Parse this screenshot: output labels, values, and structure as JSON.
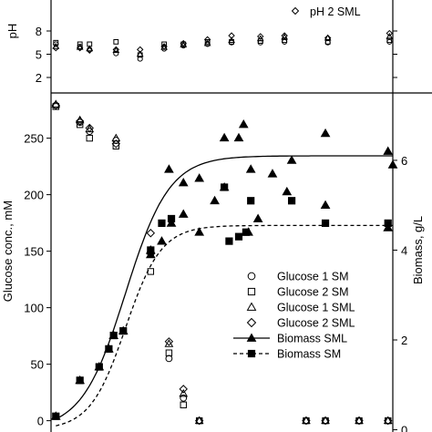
{
  "chart_data": {
    "type": "scatter",
    "x_range": [
      -1,
      70
    ],
    "top_panel": {
      "ylabel": "pH",
      "yticks": [
        2,
        5,
        8
      ],
      "ylim": [
        0,
        12
      ],
      "legend_text": "pH 2 SML"
    },
    "main_panel": {
      "ylabel_left": "Glucose conc., mM",
      "ylabel_right": "Biomass, g/L",
      "left_ticks": [
        0,
        50,
        100,
        150,
        200,
        250
      ],
      "left_ylim": [
        -10,
        290
      ],
      "right_ticks": [
        0,
        2,
        4,
        6
      ],
      "right_ylim": [
        -0.05,
        7.5
      ],
      "legend": [
        {
          "label": "Glucose 1 SM",
          "marker": "circle"
        },
        {
          "label": "Glucose 2 SM",
          "marker": "square"
        },
        {
          "label": "Glucose 1 SML",
          "marker": "triangle"
        },
        {
          "label": "Glucose 2 SML",
          "marker": "diamond"
        },
        {
          "label": "Biomass SML",
          "marker": "filled-triangle",
          "line": "solid"
        },
        {
          "label": "Biomass SM",
          "marker": "filled-square",
          "line": "dashed"
        }
      ]
    },
    "series": [
      {
        "name": "Glucose 1 SM",
        "marker": "circle",
        "x": [
          0,
          5,
          7,
          12.5,
          19.7,
          23.5,
          26.5,
          29.8,
          52,
          56,
          63,
          69
        ],
        "y": [
          279,
          264,
          256,
          248,
          148,
          55,
          20,
          0,
          0,
          0,
          0,
          0
        ]
      },
      {
        "name": "Glucose 2 SM",
        "marker": "square",
        "x": [
          0,
          5,
          7,
          12.5,
          19.7,
          23.5,
          26.5,
          29.8,
          52,
          56,
          63,
          69
        ],
        "y": [
          278,
          262,
          250,
          243,
          132,
          60,
          14,
          0,
          0,
          0,
          0,
          0
        ]
      },
      {
        "name": "Glucose 1 SML",
        "marker": "triangle",
        "x": [
          0,
          5,
          7,
          12.5,
          19.7,
          23.5,
          26.5,
          29.8,
          52,
          56,
          63,
          69
        ],
        "y": [
          280,
          266,
          258,
          250,
          150,
          68,
          24,
          0,
          0,
          0,
          0,
          0
        ]
      },
      {
        "name": "Glucose 2 SML",
        "marker": "diamond",
        "x": [
          0,
          5,
          7,
          12.5,
          19.7,
          23.5,
          26.5,
          29.8,
          52,
          56,
          63,
          69
        ],
        "y": [
          279,
          265,
          259,
          245,
          166,
          70,
          28,
          0,
          0,
          0,
          0,
          0
        ]
      },
      {
        "name": "Biomass SML",
        "marker": "filled-triangle",
        "axis": "right",
        "x": [
          0,
          5,
          9,
          11,
          12,
          14,
          19.7,
          22,
          24,
          26.5,
          29.8,
          33,
          35,
          38,
          40,
          42,
          45,
          48,
          56,
          69
        ],
        "y": [
          0.3,
          1.1,
          1.4,
          1.8,
          2.1,
          2.2,
          4.0,
          4.2,
          4.6,
          4.8,
          4.4,
          5.1,
          5.4,
          6.5,
          4.4,
          4.7,
          5.7,
          5.3,
          5.0,
          4.5
        ]
      },
      {
        "name": "Biomass SML",
        "marker": "filled-triangle",
        "axis": "right",
        "x": [
          19.7,
          23.5,
          26.5,
          29.8,
          35,
          39,
          40.5,
          49,
          56,
          69,
          70
        ],
        "y": [
          3.9,
          5.8,
          5.5,
          5.6,
          6.5,
          6.8,
          5.8,
          6.0,
          6.6,
          6.2,
          5.9
        ]
      },
      {
        "name": "Biomass SM",
        "marker": "filled-square",
        "axis": "right",
        "x": [
          0,
          5,
          9,
          11,
          12,
          14,
          19.7,
          22,
          24,
          35,
          36,
          38,
          39.5,
          40.5,
          49,
          56,
          69
        ],
        "y": [
          0.3,
          1.1,
          1.4,
          1.8,
          2.1,
          2.2,
          4.0,
          4.6,
          4.7,
          5.4,
          4.2,
          4.3,
          4.4,
          5.1,
          5.1,
          4.6,
          4.6
        ]
      }
    ],
    "fits": [
      {
        "name": "Biomass SML",
        "style": "solid",
        "asymptote": 6.1
      },
      {
        "name": "Biomass SM",
        "style": "dashed",
        "asymptote": 4.55
      }
    ],
    "ph_series": [
      {
        "marker": "square",
        "x": [
          0,
          5,
          7,
          12.5,
          17.5,
          22.5,
          26.5,
          31.5,
          36.5,
          42.5,
          47.5,
          56.5,
          69.3
        ],
        "y": [
          6.5,
          6.3,
          6.3,
          6.6,
          4.9,
          6.3,
          6.3,
          6.6,
          6.6,
          6.7,
          6.8,
          6.6,
          6.8
        ]
      },
      {
        "marker": "circle",
        "x": [
          0,
          5,
          7,
          12.5,
          17.5,
          22.5,
          26.5,
          31.5,
          36.5,
          42.5,
          47.5,
          56.5,
          69.3
        ],
        "y": [
          6.3,
          6.0,
          5.6,
          5.1,
          4.4,
          5.7,
          6.1,
          6.3,
          6.5,
          6.5,
          6.6,
          6.5,
          6.6
        ]
      },
      {
        "marker": "triangle",
        "x": [
          0,
          5,
          7,
          12.5,
          17.5,
          22.5,
          26.5,
          31.5,
          36.5,
          42.5,
          47.5,
          56.5,
          69.3
        ],
        "y": [
          6.0,
          5.9,
          5.7,
          5.5,
          5.0,
          5.9,
          6.2,
          6.4,
          6.8,
          7.0,
          7.2,
          7.1,
          7.3
        ]
      },
      {
        "marker": "diamond",
        "x": [
          0,
          5,
          7,
          12.5,
          17.5,
          22.5,
          26.5,
          31.5,
          36.5,
          42.5,
          47.5,
          56.5,
          69.3
        ],
        "y": [
          5.8,
          5.8,
          5.5,
          5.6,
          5.6,
          6.0,
          6.4,
          6.9,
          7.4,
          7.3,
          7.4,
          7.1,
          7.7
        ]
      }
    ]
  }
}
